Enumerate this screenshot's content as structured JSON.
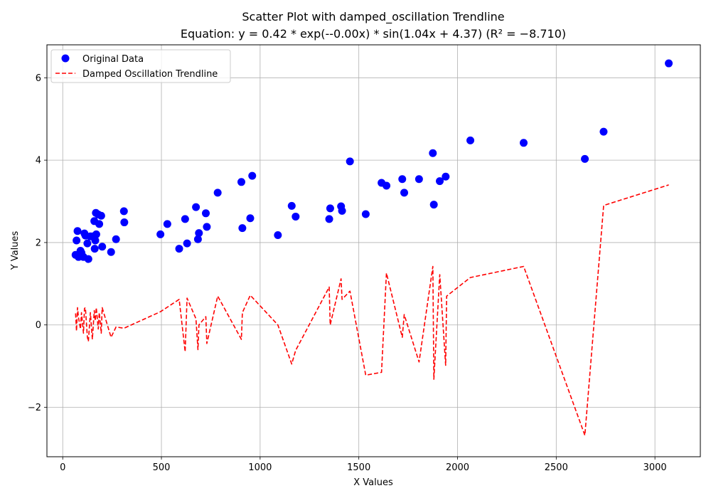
{
  "chart_data": {
    "type": "scatter",
    "title": "Scatter Plot with damped_oscillation Trendline",
    "subtitle": "Equation: y = 0.42 * exp(--0.00x) * sin(1.04x + 4.37) (R² = −8.710)",
    "xlabel": "X Values",
    "ylabel": "Y Values",
    "xlim": [
      -80,
      3230
    ],
    "ylim": [
      -3.2,
      6.8
    ],
    "x_ticks": [
      0,
      500,
      1000,
      1500,
      2000,
      2500,
      3000
    ],
    "x_tick_labels": [
      "0",
      "500",
      "1000",
      "1500",
      "2000",
      "2500",
      "3000"
    ],
    "y_ticks": [
      -2,
      0,
      2,
      4,
      6
    ],
    "y_tick_labels": [
      "−2",
      "0",
      "2",
      "4",
      "6"
    ],
    "grid": true,
    "legend_position": "top-left",
    "series": [
      {
        "name": "Original Data",
        "kind": "scatter",
        "color": "#0000ff",
        "points": [
          [
            65,
            1.7
          ],
          [
            70,
            2.05
          ],
          [
            75,
            2.28
          ],
          [
            80,
            1.65
          ],
          [
            90,
            1.8
          ],
          [
            95,
            1.75
          ],
          [
            105,
            1.65
          ],
          [
            110,
            2.22
          ],
          [
            115,
            2.17
          ],
          [
            125,
            1.98
          ],
          [
            130,
            1.6
          ],
          [
            140,
            2.15
          ],
          [
            150,
            2.15
          ],
          [
            160,
            2.52
          ],
          [
            162,
            1.85
          ],
          [
            165,
            2.05
          ],
          [
            168,
            2.72
          ],
          [
            170,
            2.2
          ],
          [
            180,
            2.68
          ],
          [
            185,
            2.45
          ],
          [
            195,
            2.65
          ],
          [
            200,
            1.9
          ],
          [
            245,
            1.77
          ],
          [
            270,
            2.08
          ],
          [
            310,
            2.76
          ],
          [
            312,
            2.49
          ],
          [
            495,
            2.2
          ],
          [
            530,
            2.45
          ],
          [
            590,
            1.85
          ],
          [
            620,
            2.57
          ],
          [
            630,
            1.98
          ],
          [
            675,
            2.86
          ],
          [
            685,
            2.08
          ],
          [
            690,
            2.23
          ],
          [
            725,
            2.71
          ],
          [
            730,
            2.38
          ],
          [
            785,
            3.21
          ],
          [
            905,
            3.47
          ],
          [
            910,
            2.35
          ],
          [
            950,
            2.59
          ],
          [
            960,
            3.62
          ],
          [
            1090,
            2.18
          ],
          [
            1160,
            2.89
          ],
          [
            1180,
            2.63
          ],
          [
            1350,
            2.57
          ],
          [
            1355,
            2.83
          ],
          [
            1410,
            2.88
          ],
          [
            1415,
            2.77
          ],
          [
            1455,
            3.97
          ],
          [
            1535,
            2.69
          ],
          [
            1615,
            3.45
          ],
          [
            1640,
            3.38
          ],
          [
            1720,
            3.54
          ],
          [
            1730,
            3.21
          ],
          [
            1805,
            3.54
          ],
          [
            1875,
            4.17
          ],
          [
            1880,
            2.92
          ],
          [
            1910,
            3.49
          ],
          [
            1940,
            3.6
          ],
          [
            2065,
            4.48
          ],
          [
            2335,
            4.42
          ],
          [
            2645,
            4.03
          ],
          [
            2740,
            4.69
          ],
          [
            3070,
            6.35
          ]
        ]
      },
      {
        "name": "Damped Oscillation Trendline",
        "kind": "line",
        "color": "#ff0000",
        "dash": "dashed",
        "points": [
          [
            65,
            0.28
          ],
          [
            70,
            -0.15
          ],
          [
            75,
            0.42
          ],
          [
            80,
            0.18
          ],
          [
            90,
            -0.1
          ],
          [
            95,
            0.3
          ],
          [
            105,
            -0.2
          ],
          [
            110,
            0.4
          ],
          [
            115,
            0.42
          ],
          [
            125,
            -0.3
          ],
          [
            130,
            -0.4
          ],
          [
            140,
            0.3
          ],
          [
            150,
            -0.35
          ],
          [
            160,
            0.35
          ],
          [
            165,
            0.1
          ],
          [
            170,
            0.42
          ],
          [
            180,
            -0.1
          ],
          [
            185,
            0.3
          ],
          [
            195,
            -0.2
          ],
          [
            200,
            0.42
          ],
          [
            245,
            -0.3
          ],
          [
            270,
            -0.05
          ],
          [
            310,
            -0.08
          ],
          [
            495,
            0.32
          ],
          [
            590,
            0.62
          ],
          [
            620,
            -0.65
          ],
          [
            630,
            0.65
          ],
          [
            675,
            0.15
          ],
          [
            685,
            -0.6
          ],
          [
            690,
            0.0
          ],
          [
            725,
            0.2
          ],
          [
            730,
            -0.45
          ],
          [
            785,
            0.7
          ],
          [
            905,
            -0.35
          ],
          [
            910,
            0.3
          ],
          [
            950,
            0.72
          ],
          [
            1090,
            0.0
          ],
          [
            1160,
            -0.95
          ],
          [
            1180,
            -0.62
          ],
          [
            1350,
            0.92
          ],
          [
            1355,
            0.0
          ],
          [
            1410,
            1.12
          ],
          [
            1415,
            0.62
          ],
          [
            1455,
            0.82
          ],
          [
            1535,
            -1.22
          ],
          [
            1615,
            -1.15
          ],
          [
            1640,
            1.26
          ],
          [
            1720,
            -0.3
          ],
          [
            1730,
            0.25
          ],
          [
            1805,
            -0.9
          ],
          [
            1875,
            1.42
          ],
          [
            1880,
            -1.32
          ],
          [
            1910,
            1.22
          ],
          [
            1940,
            -0.98
          ],
          [
            1945,
            0.7
          ],
          [
            2065,
            1.15
          ],
          [
            2335,
            1.42
          ],
          [
            2645,
            -2.68
          ],
          [
            2740,
            2.9
          ],
          [
            3070,
            3.4
          ]
        ]
      }
    ]
  }
}
